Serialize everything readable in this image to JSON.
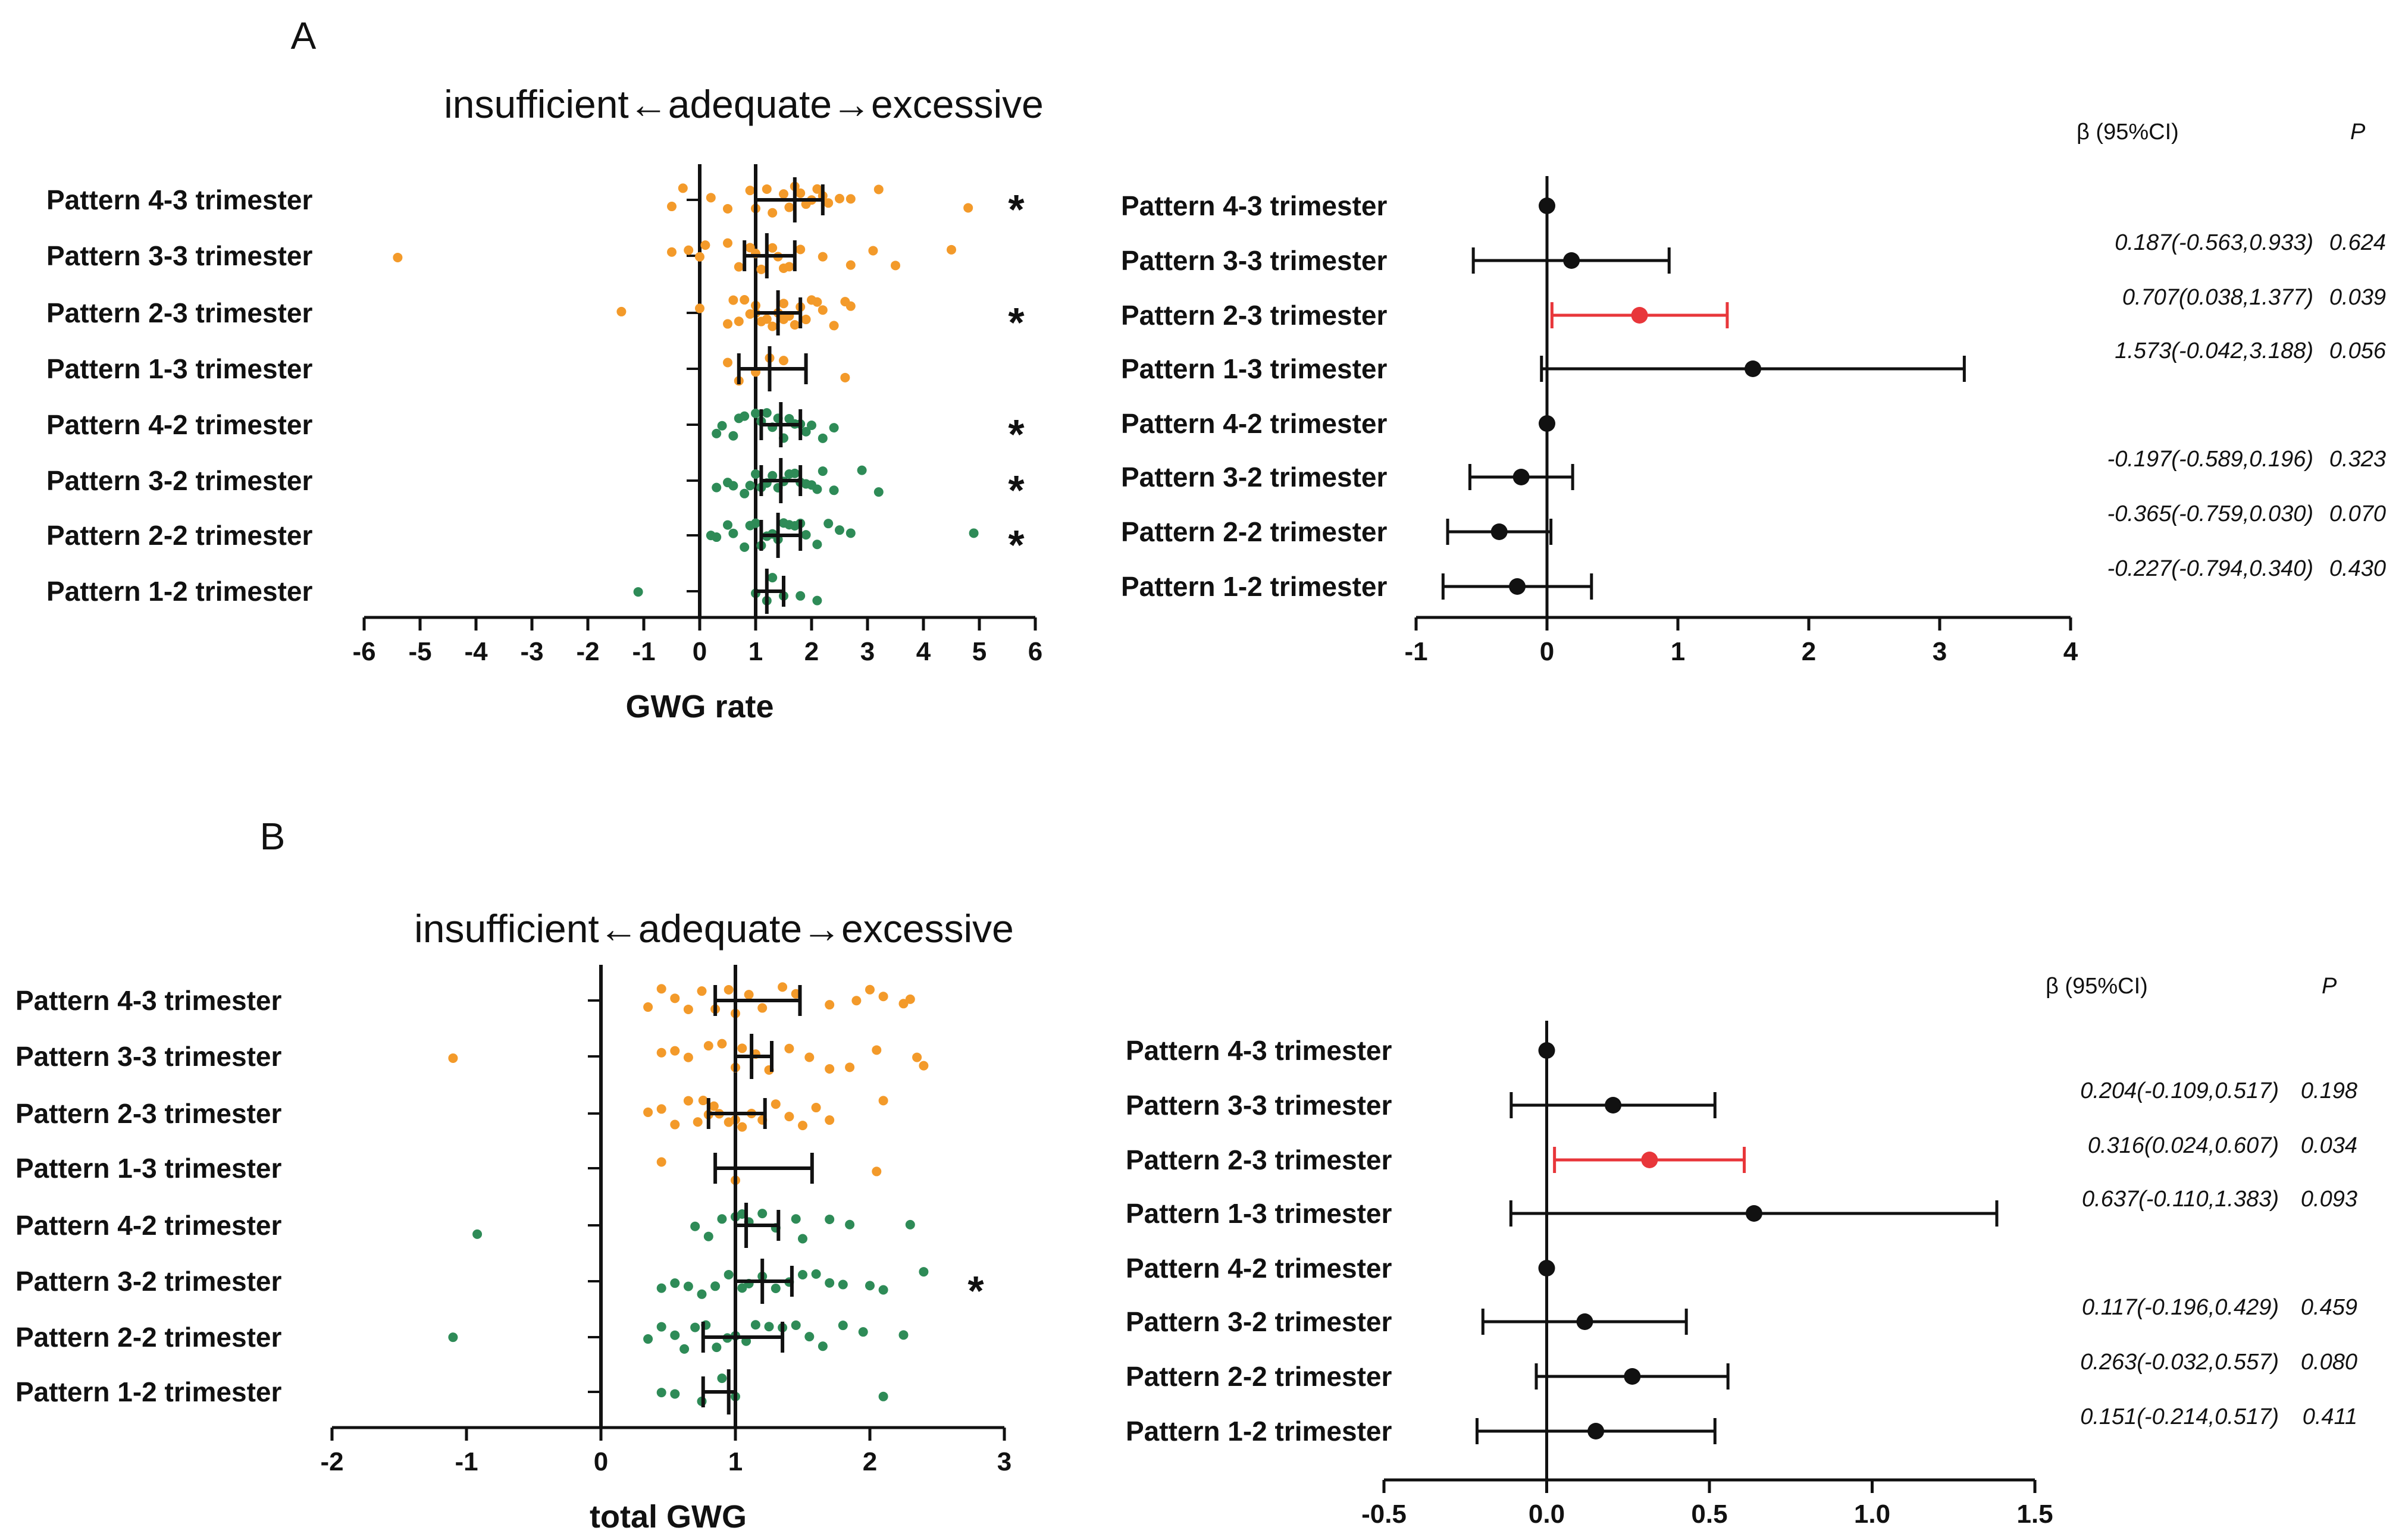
{
  "chart_data": [
    {
      "type": "scatter",
      "panel_label": "A",
      "title": "insufficient←adequate→excessive",
      "xlabel": "GWG rate",
      "ylabel": "",
      "xlim": [
        -6,
        6
      ],
      "xticks": [
        "-6",
        "-5",
        "-4",
        "-3",
        "-2",
        "-1",
        "0",
        "1",
        "2",
        "3",
        "4",
        "5",
        "6"
      ],
      "reference_lines": [
        0,
        1
      ],
      "colors": {
        "3-trimester": "#f39a2a",
        "2-trimester": "#2e8b57",
        "errorbar": "#111111"
      },
      "rows": [
        {
          "label": "Pattern 4-3 trimester",
          "group": "3-trimester",
          "mean": 1.7,
          "ci_low": 1.0,
          "ci_high": 2.2,
          "significant": true,
          "points": [
            -0.5,
            -0.3,
            0.2,
            0.5,
            0.9,
            1.0,
            1.2,
            1.3,
            1.5,
            1.6,
            1.7,
            1.8,
            1.9,
            2.0,
            2.1,
            2.2,
            2.3,
            2.5,
            2.7,
            3.2,
            4.8
          ]
        },
        {
          "label": "Pattern 3-3 trimester",
          "group": "3-trimester",
          "mean": 1.2,
          "ci_low": 0.8,
          "ci_high": 1.7,
          "significant": false,
          "points": [
            -5.4,
            -0.5,
            -0.2,
            0.0,
            0.1,
            0.5,
            0.7,
            0.9,
            1.0,
            1.1,
            1.3,
            1.4,
            1.5,
            1.6,
            1.8,
            2.2,
            2.7,
            3.1,
            3.5,
            4.5
          ]
        },
        {
          "label": "Pattern 2-3 trimester",
          "group": "3-trimester",
          "mean": 1.4,
          "ci_low": 1.0,
          "ci_high": 1.8,
          "significant": true,
          "points": [
            -1.4,
            0.0,
            0.5,
            0.6,
            0.7,
            0.8,
            0.9,
            1.0,
            1.0,
            1.1,
            1.2,
            1.3,
            1.4,
            1.5,
            1.5,
            1.6,
            1.7,
            1.8,
            1.9,
            2.0,
            2.1,
            2.2,
            2.4,
            2.6,
            2.7
          ]
        },
        {
          "label": "Pattern 1-3 trimester",
          "group": "3-trimester",
          "mean": 1.25,
          "ci_low": 0.7,
          "ci_high": 1.9,
          "significant": false,
          "points": [
            0.5,
            0.7,
            1.0,
            1.25,
            1.5,
            2.6
          ]
        },
        {
          "label": "Pattern 4-2 trimester",
          "group": "2-trimester",
          "mean": 1.45,
          "ci_low": 1.1,
          "ci_high": 1.8,
          "significant": true,
          "points": [
            0.3,
            0.4,
            0.6,
            0.7,
            0.8,
            1.0,
            1.1,
            1.2,
            1.3,
            1.4,
            1.5,
            1.6,
            1.7,
            1.8,
            1.9,
            2.0,
            2.2,
            2.4
          ]
        },
        {
          "label": "Pattern 3-2 trimester",
          "group": "2-trimester",
          "mean": 1.45,
          "ci_low": 1.1,
          "ci_high": 1.8,
          "significant": true,
          "points": [
            0.3,
            0.5,
            0.6,
            0.8,
            0.9,
            1.0,
            1.1,
            1.2,
            1.3,
            1.4,
            1.5,
            1.6,
            1.7,
            1.8,
            1.9,
            2.0,
            2.1,
            2.2,
            2.4,
            2.9,
            3.2
          ]
        },
        {
          "label": "Pattern 2-2 trimester",
          "group": "2-trimester",
          "mean": 1.4,
          "ci_low": 1.1,
          "ci_high": 1.8,
          "significant": true,
          "points": [
            0.2,
            0.3,
            0.5,
            0.6,
            0.8,
            0.9,
            1.0,
            1.1,
            1.2,
            1.3,
            1.4,
            1.5,
            1.6,
            1.7,
            1.8,
            1.9,
            2.1,
            2.3,
            2.5,
            2.7,
            4.9
          ]
        },
        {
          "label": "Pattern 1-2 trimester",
          "group": "2-trimester",
          "mean": 1.2,
          "ci_low": 1.0,
          "ci_high": 1.5,
          "significant": false,
          "points": [
            -1.1,
            1.0,
            1.2,
            1.3,
            1.5,
            1.8,
            2.1
          ]
        }
      ]
    },
    {
      "type": "forest",
      "panel_label": "A",
      "xlabel": "",
      "xlim": [
        -1,
        4
      ],
      "xticks": [
        "-1",
        "0",
        "1",
        "2",
        "3",
        "4"
      ],
      "stat_header": "β (95%CI)",
      "p_header": "P",
      "highlight_color": "#e8363a",
      "rows": [
        {
          "label": "Pattern 4-3 trimester",
          "beta": 0.0,
          "ci_low": null,
          "ci_high": null,
          "stat": "",
          "p": "",
          "highlight": false
        },
        {
          "label": "Pattern 3-3 trimester",
          "beta": 0.187,
          "ci_low": -0.563,
          "ci_high": 0.933,
          "stat": "0.187(-0.563,0.933)",
          "p": "0.624",
          "highlight": false
        },
        {
          "label": "Pattern 2-3 trimester",
          "beta": 0.707,
          "ci_low": 0.038,
          "ci_high": 1.377,
          "stat": "0.707(0.038,1.377)",
          "p": "0.039",
          "highlight": true
        },
        {
          "label": "Pattern 1-3 trimester",
          "beta": 1.573,
          "ci_low": -0.042,
          "ci_high": 3.188,
          "stat": "1.573(-0.042,3.188)",
          "p": "0.056",
          "highlight": false
        },
        {
          "label": "Pattern 4-2 trimester",
          "beta": 0.0,
          "ci_low": null,
          "ci_high": null,
          "stat": "",
          "p": "",
          "highlight": false
        },
        {
          "label": "Pattern 3-2 trimester",
          "beta": -0.197,
          "ci_low": -0.589,
          "ci_high": 0.196,
          "stat": "-0.197(-0.589,0.196)",
          "p": "0.323",
          "highlight": false
        },
        {
          "label": "Pattern 2-2 trimester",
          "beta": -0.365,
          "ci_low": -0.759,
          "ci_high": 0.03,
          "stat": "-0.365(-0.759,0.030)",
          "p": "0.070",
          "highlight": false
        },
        {
          "label": "Pattern 1-2 trimester",
          "beta": -0.227,
          "ci_low": -0.794,
          "ci_high": 0.34,
          "stat": "-0.227(-0.794,0.340)",
          "p": "0.430",
          "highlight": false
        }
      ]
    },
    {
      "type": "scatter",
      "panel_label": "B",
      "title": "insufficient←adequate→excessive",
      "xlabel": "total GWG",
      "ylabel": "",
      "xlim": [
        -2,
        3
      ],
      "xticks": [
        "-2",
        "-1",
        "0",
        "1",
        "2",
        "3"
      ],
      "reference_lines": [
        0,
        1
      ],
      "colors": {
        "3-trimester": "#f39a2a",
        "2-trimester": "#2e8b57",
        "errorbar": "#111111"
      },
      "rows": [
        {
          "label": "Pattern 4-3 trimester",
          "group": "3-trimester",
          "mean": 1.0,
          "ci_low": 0.85,
          "ci_high": 1.48,
          "significant": false,
          "points": [
            0.35,
            0.45,
            0.55,
            0.65,
            0.75,
            0.85,
            0.95,
            1.0,
            1.1,
            1.2,
            1.35,
            1.45,
            1.7,
            1.9,
            2.0,
            2.1,
            2.25,
            2.3
          ]
        },
        {
          "label": "Pattern 3-3 trimester",
          "group": "3-trimester",
          "mean": 1.12,
          "ci_low": 1.0,
          "ci_high": 1.27,
          "significant": false,
          "points": [
            -1.1,
            0.45,
            0.55,
            0.65,
            0.8,
            0.9,
            1.0,
            1.05,
            1.15,
            1.25,
            1.4,
            1.55,
            1.7,
            1.85,
            2.05,
            2.35,
            2.4
          ]
        },
        {
          "label": "Pattern 2-3 trimester",
          "group": "3-trimester",
          "mean": 1.0,
          "ci_low": 0.8,
          "ci_high": 1.22,
          "significant": false,
          "points": [
            0.35,
            0.45,
            0.55,
            0.65,
            0.72,
            0.76,
            0.8,
            0.84,
            0.88,
            0.95,
            1.0,
            1.05,
            1.12,
            1.2,
            1.3,
            1.4,
            1.5,
            1.6,
            1.7,
            2.1
          ]
        },
        {
          "label": "Pattern 1-3 trimester",
          "group": "3-trimester",
          "mean": 1.0,
          "ci_low": 0.85,
          "ci_high": 1.57,
          "significant": false,
          "points": [
            0.45,
            1.0,
            2.05
          ]
        },
        {
          "label": "Pattern 4-2 trimester",
          "group": "2-trimester",
          "mean": 1.08,
          "ci_low": 1.0,
          "ci_high": 1.32,
          "significant": false,
          "points": [
            -0.92,
            0.7,
            0.8,
            0.9,
            1.0,
            1.05,
            1.1,
            1.2,
            1.3,
            1.45,
            1.5,
            1.7,
            1.85,
            2.3
          ]
        },
        {
          "label": "Pattern 3-2 trimester",
          "group": "2-trimester",
          "mean": 1.2,
          "ci_low": 1.0,
          "ci_high": 1.42,
          "significant": true,
          "points": [
            0.45,
            0.55,
            0.65,
            0.75,
            0.85,
            0.95,
            1.05,
            1.1,
            1.2,
            1.3,
            1.4,
            1.5,
            1.6,
            1.7,
            1.8,
            2.0,
            2.1,
            2.4
          ]
        },
        {
          "label": "Pattern 2-2 trimester",
          "group": "2-trimester",
          "mean": 1.0,
          "ci_low": 0.76,
          "ci_high": 1.35,
          "significant": false,
          "points": [
            -1.1,
            0.35,
            0.45,
            0.55,
            0.62,
            0.7,
            0.78,
            0.86,
            0.94,
            1.0,
            1.08,
            1.15,
            1.25,
            1.35,
            1.45,
            1.55,
            1.65,
            1.8,
            1.95,
            2.25
          ]
        },
        {
          "label": "Pattern 1-2 trimester",
          "group": "2-trimester",
          "mean": 0.95,
          "ci_low": 0.76,
          "ci_high": 1.0,
          "significant": false,
          "points": [
            0.45,
            0.55,
            0.75,
            0.9,
            1.0,
            2.1
          ]
        }
      ]
    },
    {
      "type": "forest",
      "panel_label": "B",
      "xlabel": "",
      "xlim": [
        -0.5,
        1.5
      ],
      "xticks": [
        "-0.5",
        "0.0",
        "0.5",
        "1.0",
        "1.5"
      ],
      "stat_header": "β (95%CI)",
      "p_header": "P",
      "highlight_color": "#e8363a",
      "rows": [
        {
          "label": "Pattern 4-3 trimester",
          "beta": 0.0,
          "ci_low": null,
          "ci_high": null,
          "stat": "",
          "p": "",
          "highlight": false
        },
        {
          "label": "Pattern 3-3 trimester",
          "beta": 0.204,
          "ci_low": -0.109,
          "ci_high": 0.517,
          "stat": "0.204(-0.109,0.517)",
          "p": "0.198",
          "highlight": false
        },
        {
          "label": "Pattern 2-3 trimester",
          "beta": 0.316,
          "ci_low": 0.024,
          "ci_high": 0.607,
          "stat": "0.316(0.024,0.607)",
          "p": "0.034",
          "highlight": true
        },
        {
          "label": "Pattern 1-3 trimester",
          "beta": 0.637,
          "ci_low": -0.11,
          "ci_high": 1.383,
          "stat": "0.637(-0.110,1.383)",
          "p": "0.093",
          "highlight": false
        },
        {
          "label": "Pattern 4-2 trimester",
          "beta": 0.0,
          "ci_low": null,
          "ci_high": null,
          "stat": "",
          "p": "",
          "highlight": false
        },
        {
          "label": "Pattern 3-2 trimester",
          "beta": 0.117,
          "ci_low": -0.196,
          "ci_high": 0.429,
          "stat": "0.117(-0.196,0.429)",
          "p": "0.459",
          "highlight": false
        },
        {
          "label": "Pattern 2-2 trimester",
          "beta": 0.263,
          "ci_low": -0.032,
          "ci_high": 0.557,
          "stat": "0.263(-0.032,0.557)",
          "p": "0.080",
          "highlight": false
        },
        {
          "label": "Pattern 1-2 trimester",
          "beta": 0.151,
          "ci_low": -0.214,
          "ci_high": 0.517,
          "stat": "0.151(-0.214,0.517)",
          "p": "0.411",
          "highlight": false
        }
      ]
    }
  ]
}
